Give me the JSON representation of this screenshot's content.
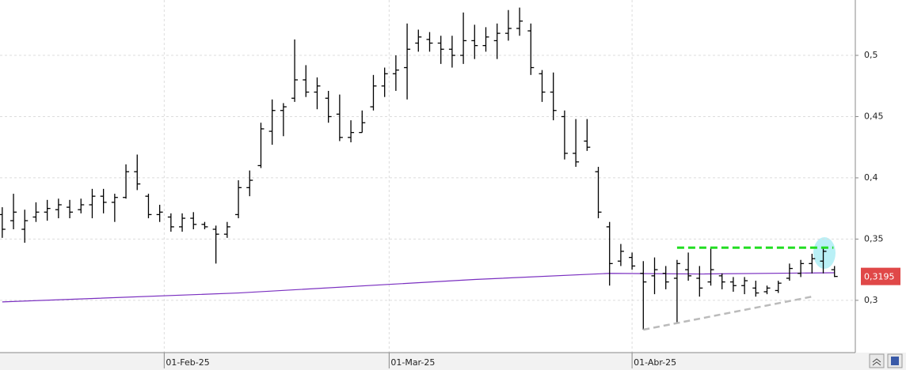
{
  "chart_data": {
    "type": "ohlc",
    "color": "#000000",
    "open": [
      0.37,
      0.365,
      0.358,
      0.368,
      0.372,
      0.374,
      0.376,
      0.374,
      0.378,
      0.385,
      0.38,
      0.384,
      0.405,
      0.385,
      0.37,
      0.368,
      0.36,
      0.367,
      0.362,
      0.358,
      0.354,
      0.37,
      0.392,
      0.41,
      0.438,
      0.455,
      0.465,
      0.48,
      0.47,
      0.465,
      0.452,
      0.433,
      0.437,
      0.458,
      0.475,
      0.485,
      0.49,
      0.51,
      0.513,
      0.51,
      0.505,
      0.5,
      0.512,
      0.508,
      0.512,
      0.518,
      0.522,
      0.52,
      0.485,
      0.47,
      0.45,
      0.42,
      0.43,
      0.405,
      0.36,
      0.332,
      0.335,
      0.322,
      0.32,
      0.322,
      0.318,
      0.325,
      0.318,
      0.315,
      0.32,
      0.315,
      0.312,
      0.31,
      0.307,
      0.308,
      0.318,
      0.322,
      0.33,
      0.332,
      0.325
    ],
    "high": [
      0.376,
      0.387,
      0.374,
      0.38,
      0.382,
      0.383,
      0.382,
      0.383,
      0.391,
      0.391,
      0.387,
      0.411,
      0.419,
      0.387,
      0.378,
      0.371,
      0.371,
      0.372,
      0.364,
      0.361,
      0.364,
      0.398,
      0.406,
      0.445,
      0.464,
      0.461,
      0.513,
      0.492,
      0.482,
      0.471,
      0.468,
      0.447,
      0.455,
      0.484,
      0.49,
      0.5,
      0.526,
      0.521,
      0.519,
      0.516,
      0.516,
      0.535,
      0.525,
      0.523,
      0.526,
      0.537,
      0.539,
      0.526,
      0.488,
      0.486,
      0.455,
      0.448,
      0.448,
      0.409,
      0.364,
      0.346,
      0.339,
      0.332,
      0.335,
      0.328,
      0.333,
      0.339,
      0.328,
      0.343,
      0.322,
      0.319,
      0.319,
      0.316,
      0.312,
      0.316,
      0.33,
      0.333,
      0.338,
      0.343,
      0.328
    ],
    "low": [
      0.351,
      0.358,
      0.347,
      0.364,
      0.365,
      0.367,
      0.367,
      0.371,
      0.367,
      0.371,
      0.364,
      0.383,
      0.39,
      0.367,
      0.364,
      0.356,
      0.356,
      0.358,
      0.358,
      0.33,
      0.351,
      0.367,
      0.385,
      0.408,
      0.427,
      0.434,
      0.462,
      0.466,
      0.456,
      0.445,
      0.43,
      0.429,
      0.437,
      0.455,
      0.466,
      0.471,
      0.464,
      0.503,
      0.503,
      0.493,
      0.49,
      0.493,
      0.497,
      0.503,
      0.497,
      0.512,
      0.516,
      0.484,
      0.462,
      0.447,
      0.415,
      0.409,
      0.422,
      0.367,
      0.312,
      0.328,
      0.325,
      0.276,
      0.305,
      0.309,
      0.281,
      0.316,
      0.303,
      0.312,
      0.309,
      0.307,
      0.305,
      0.303,
      0.305,
      0.306,
      0.316,
      0.319,
      0.322,
      0.322,
      0.319
    ],
    "close": [
      0.358,
      0.372,
      0.365,
      0.372,
      0.375,
      0.378,
      0.372,
      0.378,
      0.385,
      0.38,
      0.384,
      0.405,
      0.395,
      0.37,
      0.372,
      0.36,
      0.367,
      0.362,
      0.36,
      0.354,
      0.36,
      0.392,
      0.398,
      0.44,
      0.455,
      0.458,
      0.48,
      0.47,
      0.475,
      0.45,
      0.433,
      0.437,
      0.445,
      0.475,
      0.485,
      0.488,
      0.505,
      0.515,
      0.51,
      0.505,
      0.5,
      0.512,
      0.508,
      0.515,
      0.518,
      0.522,
      0.528,
      0.49,
      0.47,
      0.455,
      0.42,
      0.413,
      0.425,
      0.372,
      0.33,
      0.34,
      0.328,
      0.315,
      0.325,
      0.315,
      0.33,
      0.32,
      0.31,
      0.325,
      0.315,
      0.312,
      0.316,
      0.306,
      0.31,
      0.314,
      0.326,
      0.33,
      0.334,
      0.34,
      0.3195
    ],
    "last_price": 0.3195,
    "last_price_label": "0,3195",
    "moving_average": {
      "color": "#7a2fc0",
      "x": [
        0,
        21,
        42,
        54,
        62,
        74
      ],
      "values": [
        0.2987,
        0.306,
        0.317,
        0.322,
        0.3215,
        0.3225
      ]
    },
    "annotations": [
      {
        "color": "#22dd22",
        "x": [
          60,
          73.9
        ],
        "y": [
          0.343,
          0.343
        ]
      },
      {
        "color": "#bbbbbb",
        "x": [
          57,
          72
        ],
        "y": [
          0.276,
          0.303
        ]
      }
    ],
    "xlim": [
      -0.2,
      75.85
    ],
    "ylim": [
      0.2573,
      0.5452
    ],
    "xticks": [
      {
        "value": 14.4,
        "label": "01-Feb-25"
      },
      {
        "value": 34.4,
        "label": "01-Mar-25"
      },
      {
        "value": 56.0,
        "label": "01-Abr-25"
      }
    ],
    "yticks": [
      {
        "value": 0.3,
        "label": "0,3"
      },
      {
        "value": 0.35,
        "label": "0,35"
      },
      {
        "value": 0.4,
        "label": "0,4"
      },
      {
        "value": 0.45,
        "label": "0,45"
      },
      {
        "value": 0.5,
        "label": "0,5"
      }
    ],
    "grid": true
  }
}
